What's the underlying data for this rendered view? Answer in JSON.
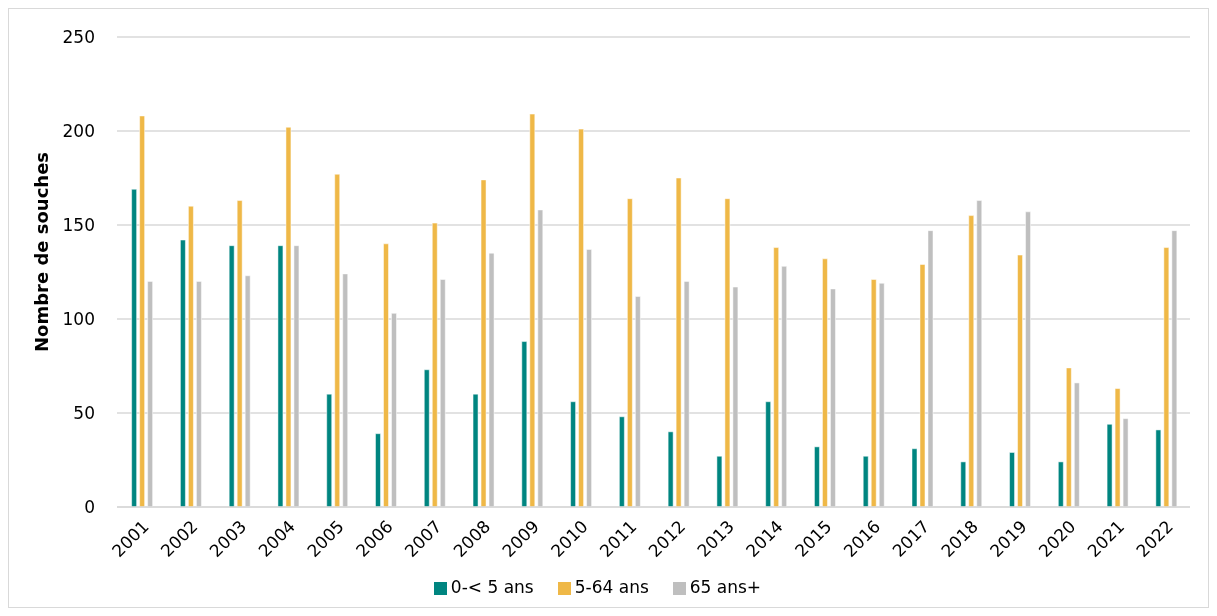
{
  "chart_data": {
    "type": "bar",
    "ylabel": "Nombre de souches",
    "categories": [
      "2001",
      "2002",
      "2003",
      "2004",
      "2005",
      "2006",
      "2007",
      "2008",
      "2009",
      "2010",
      "2011",
      "2012",
      "2013",
      "2014",
      "2015",
      "2016",
      "2017",
      "2018",
      "2019",
      "2020",
      "2021",
      "2022"
    ],
    "series": [
      {
        "name": "0-< 5 ans",
        "color": "#008580",
        "values": [
          169,
          142,
          139,
          139,
          60,
          39,
          73,
          60,
          88,
          56,
          48,
          40,
          27,
          56,
          32,
          27,
          31,
          24,
          29,
          24,
          44,
          41
        ]
      },
      {
        "name": "5-64 ans",
        "color": "#efb847",
        "values": [
          208,
          160,
          163,
          202,
          177,
          140,
          151,
          174,
          209,
          201,
          164,
          175,
          164,
          138,
          132,
          121,
          129,
          155,
          134,
          74,
          63,
          138
        ]
      },
      {
        "name": "65 ans+",
        "color": "#bfbfbf",
        "values": [
          120,
          120,
          123,
          139,
          124,
          103,
          121,
          135,
          158,
          137,
          112,
          120,
          117,
          128,
          116,
          119,
          147,
          163,
          157,
          66,
          47,
          147
        ]
      }
    ],
    "ylim": [
      0,
      250
    ],
    "yticks": [
      0,
      50,
      100,
      150,
      200,
      250
    ],
    "grid": "y",
    "legend": "bottom"
  }
}
